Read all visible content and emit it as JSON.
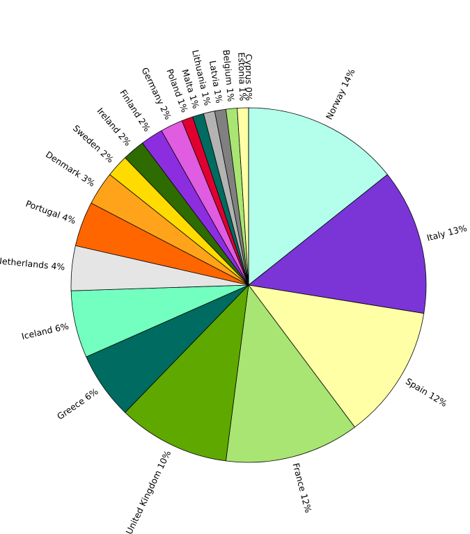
{
  "chart_data": {
    "type": "pie",
    "categories": [
      "Norway",
      "Italy",
      "Spain",
      "France",
      "United Kingdom",
      "Greece",
      "Iceland",
      "Netherlands",
      "Portugal",
      "Denmark",
      "Sweden",
      "Ireland",
      "Finland",
      "Germany",
      "Poland",
      "Malta",
      "Lithuania",
      "Latvia",
      "Belgium",
      "Estonia",
      "Cyprus"
    ],
    "values": [
      14,
      13,
      12,
      12,
      10,
      6,
      6,
      4,
      4,
      3,
      2,
      2,
      2,
      2,
      1,
      1,
      1,
      1,
      1,
      1,
      0
    ],
    "value_labels": [
      "14%",
      "13%",
      "12%",
      "12%",
      "10%",
      "6%",
      "6%",
      "4%",
      "4%",
      "3%",
      "2%",
      "2%",
      "2%",
      "2%",
      "1%",
      "1%",
      "1%",
      "1%",
      "1%",
      "1%",
      "0%"
    ],
    "colors": [
      "#b3ffec",
      "#7b35d6",
      "#ffffa6",
      "#a8e572",
      "#5fa800",
      "#006b60",
      "#73ffbf",
      "#e5e5e5",
      "#ff6600",
      "#ffa31a",
      "#ffdb00",
      "#2e6b00",
      "#8c2ee0",
      "#e05ce0",
      "#e00030",
      "#006b60",
      "#b3b3b3",
      "#808080",
      "#a8e572",
      "#ffffa6",
      "#1a9e99"
    ]
  }
}
